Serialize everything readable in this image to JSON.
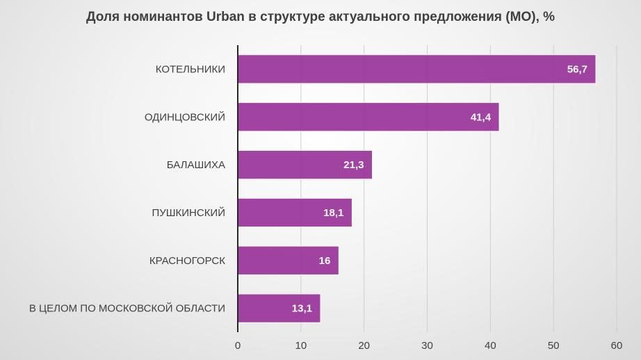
{
  "chart_data": {
    "type": "bar",
    "orientation": "horizontal",
    "title": "Доля номинантов Urban в структуре актуального предложения (МО), %",
    "categories": [
      "КОТЕЛЬНИКИ",
      "ОДИНЦОВСКИЙ",
      "БАЛАШИХА",
      "ПУШКИНСКИЙ",
      "КРАСНОГОРСК",
      "В ЦЕЛОМ ПО МОСКОВСКОЙ ОБЛАСТИ"
    ],
    "values": [
      56.7,
      41.4,
      21.3,
      18.1,
      16,
      13.1
    ],
    "value_labels": [
      "56,7",
      "41,4",
      "21,3",
      "18,1",
      "16",
      "13,1"
    ],
    "xlim": [
      0,
      60
    ],
    "xticks": [
      "0",
      "10",
      "20",
      "30",
      "40",
      "50",
      "60"
    ],
    "xlabel": "",
    "ylabel": "",
    "grid": true,
    "bar_color": "#993399"
  }
}
